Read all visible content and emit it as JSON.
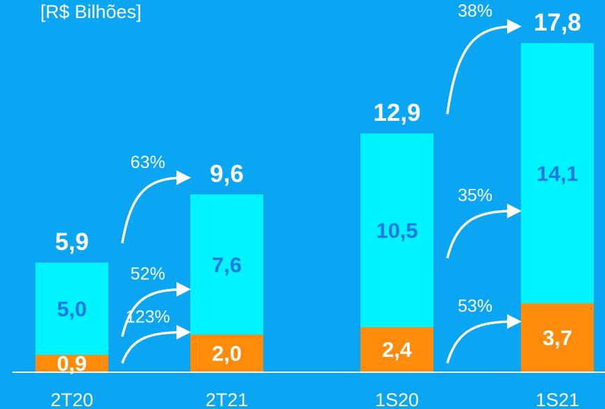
{
  "unit_label": "[R$ Bilhões]",
  "colors": {
    "background": "#0aa5f3",
    "bottom_segment": "#ff8b0a",
    "top_segment": "#00f4ff",
    "segment_label": "#1f78e6",
    "total_label": "#ffffff",
    "axis": "#ffffff"
  },
  "chart_data": {
    "type": "bar",
    "stacked": true,
    "categories": [
      "2T20",
      "2T21",
      "1S20",
      "1S21"
    ],
    "series": [
      {
        "values_label": [
          "0,9",
          "2,0",
          "2,4",
          "3,7"
        ],
        "values": [
          0.9,
          2.0,
          2.4,
          3.7
        ],
        "color": "#ff8b0a"
      },
      {
        "values_label": [
          "5,0",
          "7,6",
          "10,5",
          "14,1"
        ],
        "values": [
          5.0,
          7.6,
          10.5,
          14.1
        ],
        "color": "#00f4ff"
      }
    ],
    "totals": [
      "5,9",
      "9,6",
      "12,9",
      "17,8"
    ],
    "total_values": [
      5.9,
      9.6,
      12.9,
      17.8
    ],
    "growth": [
      {
        "from": "2T20",
        "to": "2T21",
        "segment": "bottom",
        "label": "123%"
      },
      {
        "from": "2T20",
        "to": "2T21",
        "segment": "top",
        "label": "52%"
      },
      {
        "from": "2T20",
        "to": "2T21",
        "segment": "total",
        "label": "63%"
      },
      {
        "from": "1S20",
        "to": "1S21",
        "segment": "bottom",
        "label": "53%"
      },
      {
        "from": "1S20",
        "to": "1S21",
        "segment": "top",
        "label": "35%"
      },
      {
        "from": "1S20",
        "to": "1S21",
        "segment": "total",
        "label": "38%"
      }
    ],
    "ylim": [
      0,
      17.8
    ],
    "grid": false,
    "xlabel": "",
    "ylabel": ""
  }
}
